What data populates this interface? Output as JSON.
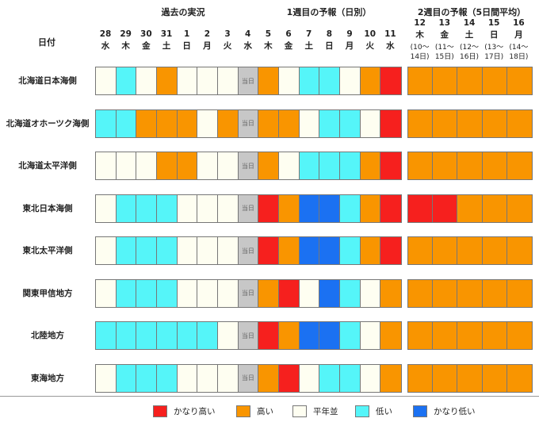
{
  "headers": {
    "date_label": "日付",
    "past": "過去の実況",
    "week1": "1週目の予報（日別）",
    "week2": "2週目の予報（5日間平均）"
  },
  "past_days": [
    {
      "day": "28",
      "dow": "水"
    },
    {
      "day": "29",
      "dow": "木"
    },
    {
      "day": "30",
      "dow": "金"
    },
    {
      "day": "31",
      "dow": "土"
    },
    {
      "day": "1",
      "dow": "日"
    },
    {
      "day": "2",
      "dow": "月"
    },
    {
      "day": "3",
      "dow": "火"
    },
    {
      "day": "4",
      "dow": "水"
    }
  ],
  "week1_days": [
    {
      "day": "5",
      "dow": "木"
    },
    {
      "day": "6",
      "dow": "金"
    },
    {
      "day": "7",
      "dow": "土"
    },
    {
      "day": "8",
      "dow": "日"
    },
    {
      "day": "9",
      "dow": "月"
    },
    {
      "day": "10",
      "dow": "火"
    },
    {
      "day": "11",
      "dow": "水"
    }
  ],
  "week2_days": [
    {
      "day": "12",
      "dow": "木",
      "range": "(10～",
      "range2": "14日)"
    },
    {
      "day": "13",
      "dow": "金",
      "range": "(11～",
      "range2": "15日)"
    },
    {
      "day": "14",
      "dow": "土",
      "range": "(12～",
      "range2": "16日)"
    },
    {
      "day": "15",
      "dow": "日",
      "range": "(13～",
      "range2": "17日)"
    },
    {
      "day": "16",
      "dow": "月",
      "range": "(14～",
      "range2": "18日)"
    }
  ],
  "today_label": "当日",
  "colors": {
    "r": "#f6201e",
    "o": "#f99500",
    "w": "#fefef1",
    "c": "#55f5f9",
    "b": "#1b71f2",
    "g": "#c7c7c7"
  },
  "regions": [
    {
      "name": "北海道日本海側",
      "daily": "wcwowwwgowccwor",
      "week2": "ooooo"
    },
    {
      "name": "北海道オホーツク海側",
      "daily": "ccooowogoowccwr",
      "week2": "ooooo"
    },
    {
      "name": "北海道太平洋側",
      "daily": "wwwoowwgowcccor",
      "week2": "ooooo"
    },
    {
      "name": "東北日本海側",
      "daily": "wcccwwwgrobbcor",
      "week2": "rrooo"
    },
    {
      "name": "東北太平洋側",
      "daily": "wcccwwwgrobbcor",
      "week2": "ooooo"
    },
    {
      "name": "関東甲信地方",
      "daily": "wcccwwwgorwbcwo",
      "week2": "ooooo"
    },
    {
      "name": "北陸地方",
      "daily": "ccccccwgrobbcwo",
      "week2": "ooooo"
    },
    {
      "name": "東海地方",
      "daily": "wcccwwwgorwccwo",
      "week2": "ooooo"
    }
  ],
  "legend": [
    {
      "key": "r",
      "label": "かなり高い"
    },
    {
      "key": "o",
      "label": "高い"
    },
    {
      "key": "w",
      "label": "平年並"
    },
    {
      "key": "c",
      "label": "低い"
    },
    {
      "key": "b",
      "label": "かなり低い"
    }
  ]
}
